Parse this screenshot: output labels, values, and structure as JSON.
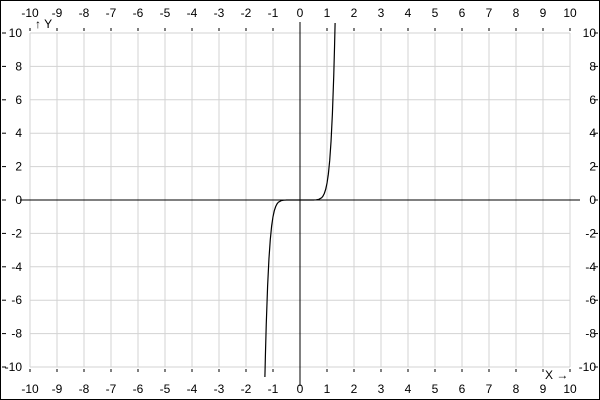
{
  "chart_data": {
    "type": "line",
    "title": "",
    "xlabel": "X →",
    "ylabel": "↑ Y",
    "xlim": [
      -10,
      10
    ],
    "ylim": [
      -10,
      10
    ],
    "grid": true,
    "x_ticks": [
      -10,
      -9,
      -8,
      -7,
      -6,
      -5,
      -4,
      -3,
      -2,
      -1,
      0,
      1,
      2,
      3,
      4,
      5,
      6,
      7,
      8,
      9,
      10
    ],
    "y_ticks": [
      10,
      8,
      6,
      4,
      2,
      0,
      -2,
      -4,
      -6,
      -8,
      -10
    ],
    "colors": {
      "grid": "#d3d3d3",
      "axis": "#000000",
      "curve": "#000000"
    },
    "series": [
      {
        "x": [
          -1.3,
          -1.28,
          -1.25,
          -1.2,
          -1.15,
          -1.1,
          -1.05,
          -1.0,
          -0.95,
          -0.9,
          -0.85,
          -0.8,
          -0.7,
          -0.6,
          -0.5,
          -0.4,
          -0.2,
          0,
          0.2,
          0.4,
          0.5,
          0.6,
          0.7,
          0.8,
          0.85,
          0.9,
          0.95,
          1.0,
          1.05,
          1.1,
          1.15,
          1.2,
          1.25,
          1.28,
          1.3
        ],
        "y": [
          -10.6,
          -9.22,
          -7.45,
          -5.16,
          -3.52,
          -2.36,
          -1.55,
          -1.0,
          -0.63,
          -0.39,
          -0.23,
          -0.13,
          -0.04,
          -0.01,
          -0.002,
          0,
          0,
          0,
          0,
          0,
          0.002,
          0.01,
          0.04,
          0.13,
          0.23,
          0.39,
          0.63,
          1.0,
          1.55,
          2.36,
          3.52,
          5.16,
          7.45,
          9.22,
          10.6
        ]
      }
    ]
  }
}
